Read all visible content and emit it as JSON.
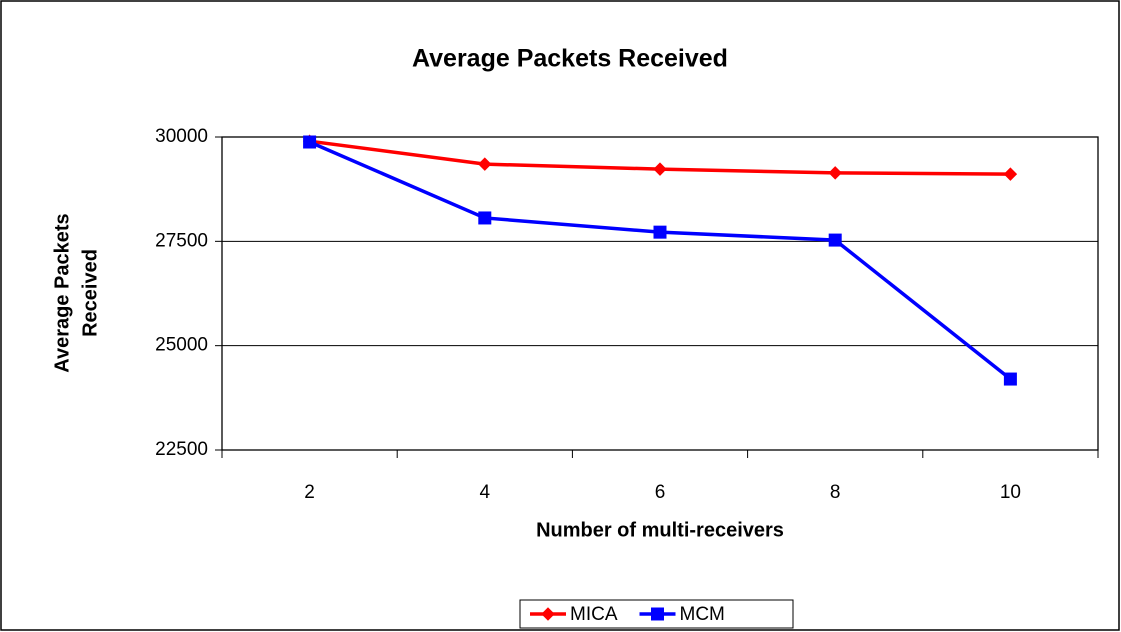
{
  "chart_data": {
    "type": "line",
    "title": "Average Packets Received",
    "xlabel": "Number of multi-receivers",
    "ylabel": [
      "Average Packets",
      "Received"
    ],
    "categories": [
      "2",
      "4",
      "6",
      "8",
      "10"
    ],
    "series": [
      {
        "name": "MICA",
        "color": "#ff0000",
        "marker": "diamond",
        "values": [
          29900,
          29350,
          29230,
          29140,
          29110
        ]
      },
      {
        "name": "MCM",
        "color": "#0000ff",
        "marker": "square",
        "values": [
          29880,
          28060,
          27720,
          27530,
          24200
        ]
      }
    ],
    "ylim": [
      22500,
      30000
    ],
    "yticks": [
      22500,
      25000,
      27500,
      30000
    ],
    "grid": true,
    "legend": "bottom"
  }
}
